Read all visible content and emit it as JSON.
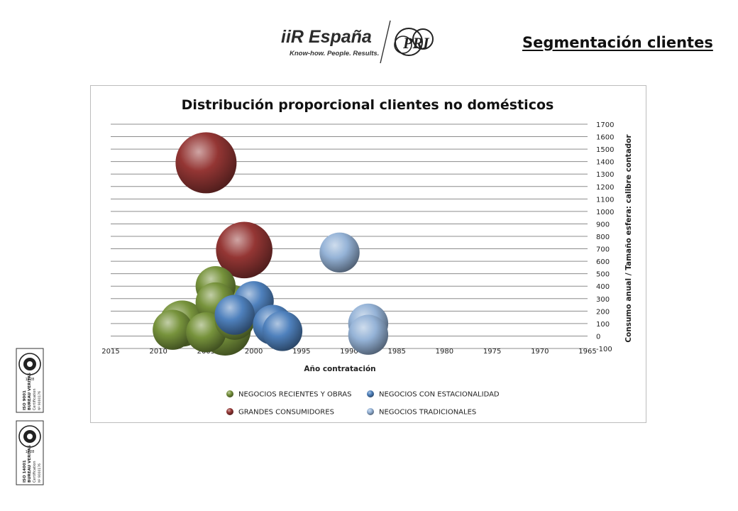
{
  "header": {
    "brand_name": "iiR España",
    "brand_tagline": "Know-how. People. Results.",
    "partner_mark": "PRI",
    "title": "Segmentación clientes"
  },
  "certifications": [
    {
      "standard": "ISO 9001",
      "body": "BUREAU VERITAS",
      "label": "Certification",
      "number": "Nº 9000176",
      "seal_year": "1828"
    },
    {
      "standard": "ISO 14001",
      "body": "BUREAU VERITAS",
      "label": "Certification",
      "number": "Nº 9000176",
      "seal_year": "1828"
    }
  ],
  "chart_data": {
    "type": "bubble",
    "title": "Distribución proporcional clientes no domésticos",
    "xlabel": "Año contratación",
    "ylabel": "Consumo anual / Tamaño esfera: calibre contador",
    "x_reversed": true,
    "xlim": [
      2015,
      1965
    ],
    "xticks": [
      2015,
      2010,
      2005,
      2000,
      1995,
      1990,
      1985,
      1980,
      1975,
      1970,
      1965
    ],
    "ylim": [
      -100,
      1700
    ],
    "yticks": [
      -100,
      0,
      100,
      200,
      300,
      400,
      500,
      600,
      700,
      800,
      900,
      1000,
      1100,
      1200,
      1300,
      1400,
      1500,
      1600,
      1700
    ],
    "y_axis_position": "right",
    "grid": "horizontal",
    "legend_position": "bottom",
    "series": [
      {
        "name": "NEGOCIOS RECIENTES  Y OBRAS",
        "color": "#77933c",
        "points": [
          {
            "x": 2004.0,
            "y": 400,
            "size": 3
          },
          {
            "x": 2004.0,
            "y": 270,
            "size": 3
          },
          {
            "x": 2002.5,
            "y": 230,
            "size": 4
          },
          {
            "x": 2007.5,
            "y": 100,
            "size": 4
          },
          {
            "x": 2008.5,
            "y": 50,
            "size": 3
          },
          {
            "x": 2005.0,
            "y": 30,
            "size": 3
          },
          {
            "x": 2003.0,
            "y": 50,
            "size": 5
          },
          {
            "x": 2002.0,
            "y": 130,
            "size": 3
          }
        ]
      },
      {
        "name": "NEGOCIOS CON ESTACIONALIDAD",
        "color": "#4f81bd",
        "points": [
          {
            "x": 2000.0,
            "y": 280,
            "size": 3
          },
          {
            "x": 2002.0,
            "y": 170,
            "size": 3
          },
          {
            "x": 1998.0,
            "y": 90,
            "size": 3
          },
          {
            "x": 1997.0,
            "y": 40,
            "size": 3
          }
        ]
      },
      {
        "name": "GRANDES CONSUMIDORES",
        "color": "#943634",
        "points": [
          {
            "x": 2005.0,
            "y": 1390,
            "size": 7
          },
          {
            "x": 2001.0,
            "y": 690,
            "size": 6
          }
        ]
      },
      {
        "name": "NEGOCIOS TRADICIONALES",
        "color": "#95b3d7",
        "points": [
          {
            "x": 1991.0,
            "y": 670,
            "size": 3
          },
          {
            "x": 1988.0,
            "y": 100,
            "size": 3
          },
          {
            "x": 1988.0,
            "y": 10,
            "size": 3
          }
        ]
      }
    ]
  }
}
